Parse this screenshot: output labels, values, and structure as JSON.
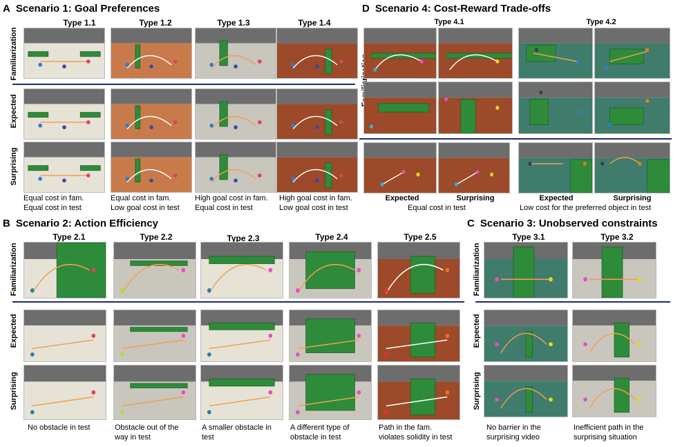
{
  "scenario1": {
    "letter": "A",
    "title": "Scenario 1: Goal Preferences",
    "types": [
      "Type 1.1",
      "Type 1.2",
      "Type 1.3",
      "Type 1.4"
    ],
    "rows": [
      "Familiarization",
      "Expected",
      "Surprising"
    ],
    "captions": [
      [
        "Equal cost in fam.",
        "Equal cost in test"
      ],
      [
        "Equal cost in fam.",
        "Low goal cost in test"
      ],
      [
        "High goal cost in fam.",
        "Equal cost in test"
      ],
      [
        "High goal cost in fam.",
        "Low goal cost in test"
      ]
    ]
  },
  "scenario2": {
    "letter": "B",
    "title": "Scenario 2: Action Efficiency",
    "types": [
      "Type 2.1",
      "Type 2.2",
      "Type 2.3",
      "Type 2.4",
      "Type 2.5"
    ],
    "rows": [
      "Familiarization",
      "Expected",
      "Surprising"
    ],
    "captions": [
      [
        "No obstacle in test",
        ""
      ],
      [
        "Obstacle out of the",
        "way in test"
      ],
      [
        "A smaller obstacle in",
        "test"
      ],
      [
        "A different type of",
        "obstacle in test"
      ],
      [
        "Path in the fam.",
        "violates solidity in test"
      ]
    ]
  },
  "scenario3": {
    "letter": "C",
    "title": "Scenario 3: Unobserved constraints",
    "types": [
      "Type 3.1",
      "Type 3.2"
    ],
    "rows": [
      "Familiarization",
      "Expected",
      "Surprising"
    ],
    "captions": [
      [
        "No barrier in the",
        "surprising video"
      ],
      [
        "Inefficient path in the",
        "surprising situation"
      ]
    ]
  },
  "scenario4": {
    "letter": "D",
    "title": "Scenario 4: Cost-Reward Trade-offs",
    "types": [
      "Type 4.1",
      "Type 4.2"
    ],
    "rows": [
      "Familiarization"
    ],
    "test_labels": [
      "Expected",
      "Surprising",
      "Expected",
      "Surprising"
    ],
    "captions": [
      "Equal cost in test",
      "Low cost for the preferred object in test"
    ]
  },
  "colors": {
    "divider": "#1d2a6e",
    "obstacle": "#2e8b3a",
    "path_orange": "#f0a050",
    "path_white": "#ffffff"
  }
}
